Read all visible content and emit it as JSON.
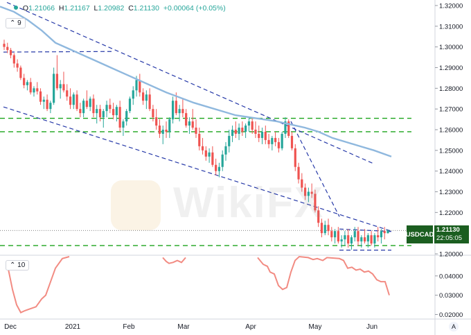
{
  "header": {
    "ohlc": [
      {
        "label": "O",
        "value": "1.21066"
      },
      {
        "label": "H",
        "value": "1.21167"
      },
      {
        "label": "L",
        "value": "1.20982"
      },
      {
        "label": "C",
        "value": "1.21130"
      }
    ],
    "change": "+0.00064 (+0.05%)"
  },
  "indicators": {
    "top": "9",
    "bottom": "10"
  },
  "symbol": "USDCAD",
  "last_price": "1.21130",
  "countdown": "22:05:05",
  "watermark": "WikiFX",
  "auto_button": "A",
  "colors": {
    "up": "#26a69a",
    "down": "#ef5350",
    "ma": "#8fb8de",
    "trend": "#2639a8",
    "support": "#1aa31a",
    "osc": "#f28b82",
    "tag": "#1b5e20"
  },
  "chart_data": [
    {
      "type": "candlestick",
      "x_ticks": [
        "Dec",
        "2021",
        "Feb",
        "Mar",
        "Apr",
        "May",
        "Jun"
      ],
      "y_ticks": [
        "1.32000",
        "1.31000",
        "1.30000",
        "1.29000",
        "1.28000",
        "1.27000",
        "1.26000",
        "1.25000",
        "1.24000",
        "1.23000",
        "1.22000",
        "1.21000",
        "1.20000"
      ],
      "ylim": [
        1.2,
        1.322
      ],
      "candles": [
        [
          1.3015,
          1.3035,
          1.2985,
          1.3
        ],
        [
          1.3,
          1.302,
          1.297,
          1.2985
        ],
        [
          1.2985,
          1.2995,
          1.2945,
          1.296
        ],
        [
          1.296,
          1.297,
          1.29,
          1.292
        ],
        [
          1.292,
          1.294,
          1.288,
          1.29
        ],
        [
          1.29,
          1.291,
          1.284,
          1.285
        ],
        [
          1.285,
          1.287,
          1.28,
          1.2815
        ],
        [
          1.2815,
          1.284,
          1.279,
          1.283
        ],
        [
          1.283,
          1.285,
          1.277,
          1.278
        ],
        [
          1.278,
          1.281,
          1.276,
          1.28
        ],
        [
          1.28,
          1.283,
          1.277,
          1.2785
        ],
        [
          1.2785,
          1.28,
          1.272,
          1.2735
        ],
        [
          1.2735,
          1.276,
          1.27,
          1.2745
        ],
        [
          1.2745,
          1.277,
          1.269,
          1.27
        ],
        [
          1.27,
          1.274,
          1.268,
          1.273
        ],
        [
          1.273,
          1.29,
          1.272,
          1.287
        ],
        [
          1.287,
          1.296,
          1.279,
          1.28
        ],
        [
          1.28,
          1.284,
          1.275,
          1.282
        ],
        [
          1.282,
          1.288,
          1.278,
          1.279
        ],
        [
          1.279,
          1.282,
          1.274,
          1.276
        ],
        [
          1.276,
          1.28,
          1.27,
          1.272
        ],
        [
          1.272,
          1.278,
          1.27,
          1.277
        ],
        [
          1.277,
          1.279,
          1.269,
          1.27
        ],
        [
          1.27,
          1.273,
          1.266,
          1.268
        ],
        [
          1.268,
          1.275,
          1.266,
          1.274
        ],
        [
          1.274,
          1.279,
          1.27,
          1.271
        ],
        [
          1.271,
          1.276,
          1.269,
          1.275
        ],
        [
          1.275,
          1.277,
          1.266,
          1.268
        ],
        [
          1.268,
          1.272,
          1.263,
          1.27
        ],
        [
          1.27,
          1.272,
          1.264,
          1.266
        ],
        [
          1.266,
          1.27,
          1.261,
          1.269
        ],
        [
          1.269,
          1.274,
          1.266,
          1.272
        ],
        [
          1.272,
          1.275,
          1.268,
          1.27
        ],
        [
          1.27,
          1.273,
          1.265,
          1.267
        ],
        [
          1.267,
          1.272,
          1.264,
          1.271
        ],
        [
          1.271,
          1.274,
          1.259,
          1.261
        ],
        [
          1.261,
          1.265,
          1.257,
          1.264
        ],
        [
          1.264,
          1.27,
          1.262,
          1.269
        ],
        [
          1.269,
          1.276,
          1.268,
          1.275
        ],
        [
          1.275,
          1.281,
          1.272,
          1.279
        ],
        [
          1.279,
          1.286,
          1.276,
          1.284
        ],
        [
          1.284,
          1.287,
          1.276,
          1.278
        ],
        [
          1.278,
          1.28,
          1.272,
          1.274
        ],
        [
          1.274,
          1.279,
          1.27,
          1.277
        ],
        [
          1.277,
          1.28,
          1.269,
          1.27
        ],
        [
          1.27,
          1.272,
          1.264,
          1.266
        ],
        [
          1.266,
          1.27,
          1.26,
          1.262
        ],
        [
          1.262,
          1.265,
          1.256,
          1.258
        ],
        [
          1.258,
          1.262,
          1.253,
          1.26
        ],
        [
          1.26,
          1.264,
          1.256,
          1.259
        ],
        [
          1.259,
          1.266,
          1.256,
          1.265
        ],
        [
          1.265,
          1.276,
          1.263,
          1.274
        ],
        [
          1.274,
          1.278,
          1.267,
          1.268
        ],
        [
          1.268,
          1.272,
          1.264,
          1.27
        ],
        [
          1.27,
          1.275,
          1.266,
          1.268
        ],
        [
          1.268,
          1.27,
          1.261,
          1.262
        ],
        [
          1.262,
          1.266,
          1.258,
          1.264
        ],
        [
          1.264,
          1.27,
          1.26,
          1.261
        ],
        [
          1.261,
          1.265,
          1.256,
          1.258
        ],
        [
          1.258,
          1.261,
          1.25,
          1.252
        ],
        [
          1.252,
          1.256,
          1.248,
          1.25
        ],
        [
          1.25,
          1.252,
          1.245,
          1.247
        ],
        [
          1.247,
          1.251,
          1.244,
          1.249
        ],
        [
          1.249,
          1.252,
          1.242,
          1.243
        ],
        [
          1.243,
          1.246,
          1.238,
          1.24
        ],
        [
          1.24,
          1.244,
          1.237,
          1.242
        ],
        [
          1.242,
          1.25,
          1.24,
          1.248
        ],
        [
          1.248,
          1.254,
          1.245,
          1.252
        ],
        [
          1.252,
          1.26,
          1.249,
          1.257
        ],
        [
          1.257,
          1.262,
          1.254,
          1.26
        ],
        [
          1.26,
          1.264,
          1.256,
          1.258
        ],
        [
          1.258,
          1.263,
          1.255,
          1.261
        ],
        [
          1.261,
          1.264,
          1.257,
          1.259
        ],
        [
          1.259,
          1.263,
          1.256,
          1.262
        ],
        [
          1.262,
          1.266,
          1.259,
          1.264
        ],
        [
          1.264,
          1.266,
          1.258,
          1.26
        ],
        [
          1.26,
          1.264,
          1.256,
          1.258
        ],
        [
          1.258,
          1.262,
          1.254,
          1.256
        ],
        [
          1.256,
          1.261,
          1.253,
          1.259
        ],
        [
          1.259,
          1.262,
          1.253,
          1.255
        ],
        [
          1.255,
          1.258,
          1.251,
          1.253
        ],
        [
          1.253,
          1.257,
          1.25,
          1.256
        ],
        [
          1.256,
          1.259,
          1.252,
          1.254
        ],
        [
          1.254,
          1.256,
          1.249,
          1.251
        ],
        [
          1.251,
          1.259,
          1.25,
          1.258
        ],
        [
          1.258,
          1.266,
          1.256,
          1.264
        ],
        [
          1.264,
          1.265,
          1.256,
          1.257
        ],
        [
          1.257,
          1.259,
          1.25,
          1.251
        ],
        [
          1.251,
          1.253,
          1.24,
          1.242
        ],
        [
          1.242,
          1.244,
          1.234,
          1.236
        ],
        [
          1.236,
          1.239,
          1.23,
          1.232
        ],
        [
          1.232,
          1.234,
          1.226,
          1.228
        ],
        [
          1.228,
          1.232,
          1.225,
          1.23
        ],
        [
          1.23,
          1.234,
          1.227,
          1.229
        ],
        [
          1.229,
          1.231,
          1.22,
          1.221
        ],
        [
          1.221,
          1.223,
          1.213,
          1.215
        ],
        [
          1.215,
          1.217,
          1.208,
          1.21
        ],
        [
          1.21,
          1.216,
          1.209,
          1.214
        ],
        [
          1.214,
          1.217,
          1.209,
          1.211
        ],
        [
          1.211,
          1.213,
          1.206,
          1.208
        ],
        [
          1.208,
          1.212,
          1.205,
          1.211
        ],
        [
          1.211,
          1.213,
          1.205,
          1.206
        ],
        [
          1.206,
          1.209,
          1.203,
          1.207
        ],
        [
          1.207,
          1.211,
          1.204,
          1.209
        ],
        [
          1.209,
          1.212,
          1.203,
          1.205
        ],
        [
          1.205,
          1.209,
          1.202,
          1.208
        ],
        [
          1.208,
          1.213,
          1.206,
          1.211
        ],
        [
          1.211,
          1.213,
          1.204,
          1.206
        ],
        [
          1.206,
          1.209,
          1.203,
          1.208
        ],
        [
          1.208,
          1.212,
          1.205,
          1.206
        ],
        [
          1.206,
          1.21,
          1.203,
          1.209
        ],
        [
          1.209,
          1.211,
          1.204,
          1.205
        ],
        [
          1.205,
          1.21,
          1.203,
          1.209
        ],
        [
          1.209,
          1.213,
          1.206,
          1.208
        ],
        [
          1.208,
          1.212,
          1.205,
          1.211
        ],
        [
          1.211,
          1.213,
          1.207,
          1.21
        ],
        [
          1.21,
          1.2117,
          1.2098,
          1.2113
        ]
      ],
      "moving_average": [
        [
          0,
          1.3195
        ],
        [
          20,
          1.317
        ],
        [
          40,
          1.313
        ],
        [
          60,
          1.308
        ],
        [
          80,
          1.302
        ],
        [
          100,
          1.299
        ],
        [
          120,
          1.296
        ],
        [
          140,
          1.293
        ],
        [
          160,
          1.29
        ],
        [
          180,
          1.287
        ],
        [
          200,
          1.284
        ],
        [
          220,
          1.281
        ],
        [
          240,
          1.278
        ],
        [
          260,
          1.2755
        ],
        [
          280,
          1.273
        ],
        [
          300,
          1.271
        ],
        [
          320,
          1.269
        ],
        [
          340,
          1.267
        ],
        [
          360,
          1.266
        ],
        [
          380,
          1.265
        ],
        [
          400,
          1.264
        ],
        [
          420,
          1.2625
        ],
        [
          440,
          1.261
        ],
        [
          460,
          1.259
        ],
        [
          480,
          1.256
        ],
        [
          500,
          1.254
        ],
        [
          520,
          1.252
        ],
        [
          540,
          1.25
        ],
        [
          565,
          1.247
        ]
      ],
      "trendlines": [
        [
          [
            10,
            1.3215
          ],
          [
            540,
            1.2435
          ]
        ],
        [
          [
            5,
            1.271
          ],
          [
            565,
            1.211
          ]
        ],
        [
          [
            420,
            1.264
          ],
          [
            490,
            1.218
          ]
        ],
        [
          [
            5,
            1.2975
          ],
          [
            165,
            1.2978
          ]
        ],
        [
          [
            490,
            1.212
          ],
          [
            565,
            1.2108
          ]
        ],
        [
          [
            490,
            1.2018
          ],
          [
            565,
            1.2018
          ]
        ]
      ],
      "support_lines": [
        1.2655,
        1.259,
        1.204
      ]
    },
    {
      "type": "line",
      "name": "oscillator",
      "y_ticks": [
        "0.04000",
        "0.03000",
        "0.02000"
      ],
      "ylim": [
        0.018,
        0.05
      ],
      "points": [
        [
          10,
          0.047
        ],
        [
          18,
          0.033
        ],
        [
          24,
          0.025
        ],
        [
          30,
          0.021
        ],
        [
          36,
          0.022
        ],
        [
          44,
          0.023
        ],
        [
          52,
          0.024
        ],
        [
          60,
          0.028
        ],
        [
          66,
          0.03
        ],
        [
          72,
          0.036
        ],
        [
          80,
          0.044
        ],
        [
          90,
          0.049
        ],
        [
          100,
          0.05
        ],
        [
          235,
          0.0495
        ],
        [
          240,
          0.0475
        ],
        [
          244,
          0.0465
        ],
        [
          250,
          0.047
        ],
        [
          256,
          0.048
        ],
        [
          262,
          0.047
        ],
        [
          268,
          0.0495
        ],
        [
          372,
          0.0495
        ],
        [
          380,
          0.046
        ],
        [
          386,
          0.045
        ],
        [
          390,
          0.042
        ],
        [
          396,
          0.041
        ],
        [
          402,
          0.035
        ],
        [
          408,
          0.033
        ],
        [
          414,
          0.034
        ],
        [
          420,
          0.042
        ],
        [
          426,
          0.048
        ],
        [
          432,
          0.05
        ],
        [
          445,
          0.0495
        ],
        [
          452,
          0.0485
        ],
        [
          458,
          0.049
        ],
        [
          466,
          0.048
        ],
        [
          472,
          0.0495
        ],
        [
          490,
          0.049
        ],
        [
          496,
          0.048
        ],
        [
          502,
          0.044
        ],
        [
          508,
          0.0445
        ],
        [
          514,
          0.043
        ],
        [
          520,
          0.0435
        ],
        [
          526,
          0.042
        ],
        [
          532,
          0.0425
        ],
        [
          538,
          0.041
        ],
        [
          544,
          0.038
        ],
        [
          550,
          0.037
        ],
        [
          556,
          0.037
        ],
        [
          562,
          0.03
        ]
      ]
    }
  ]
}
